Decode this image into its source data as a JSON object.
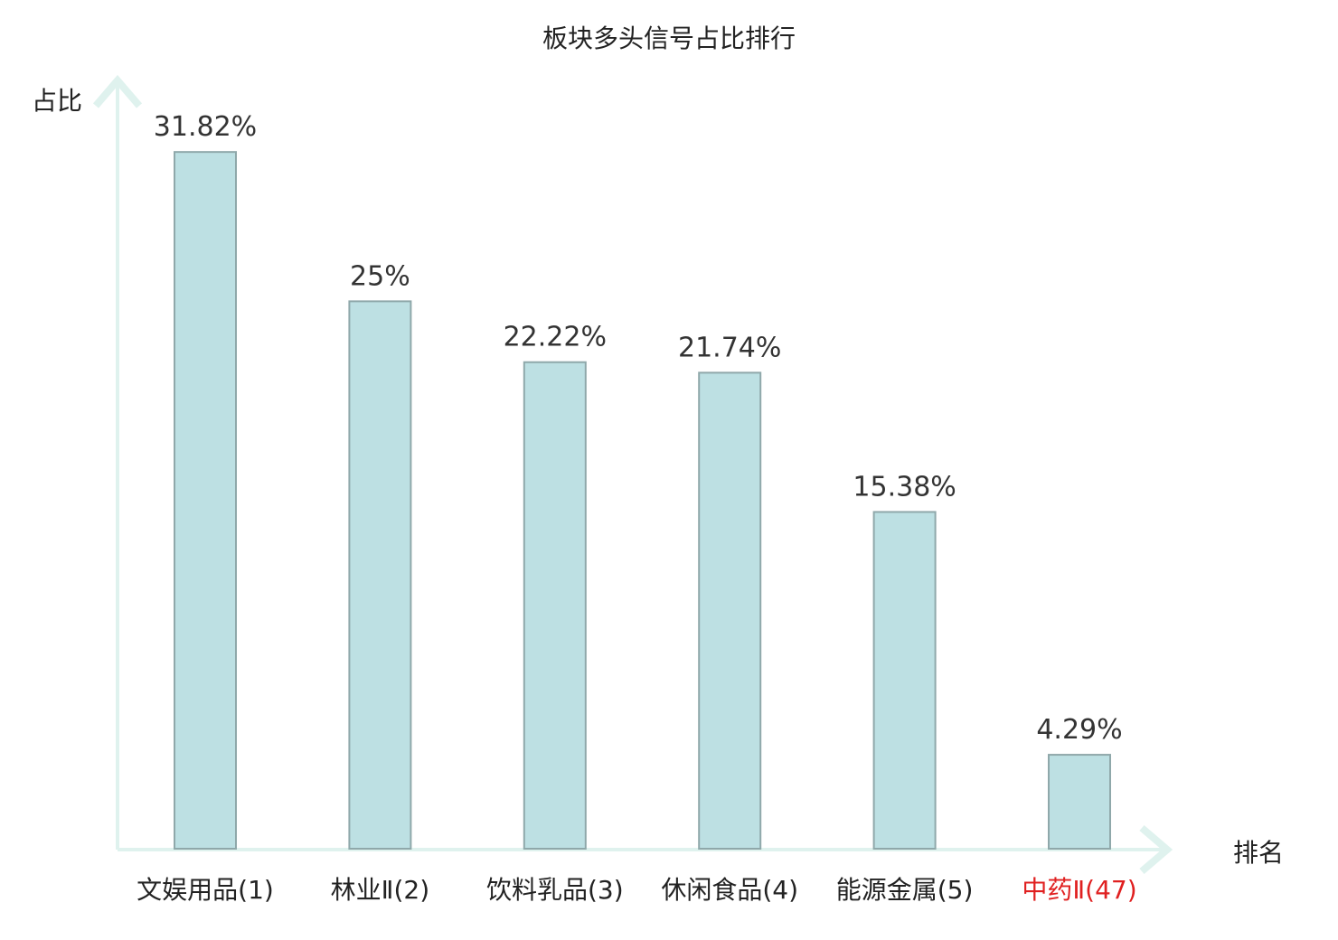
{
  "chart_data": {
    "type": "bar",
    "title": "板块多头信号占比排行",
    "ylabel": "占比",
    "xlabel": "排名",
    "categories": [
      "文娱用品(1)",
      "林业Ⅱ(2)",
      "饮料乳品(3)",
      "休闲食品(4)",
      "能源金属(5)",
      "中药Ⅱ(47)"
    ],
    "values": [
      31.82,
      25,
      22.22,
      21.74,
      15.38,
      4.29
    ],
    "value_labels": [
      "31.82%",
      "25%",
      "22.22%",
      "21.74%",
      "15.38%",
      "4.29%"
    ],
    "highlight_index": 5,
    "ylim": [
      0,
      35
    ],
    "grid": false,
    "colors": {
      "bar_fill": "#bde0e3",
      "bar_stroke": "#8fa8aa",
      "axis": "#dff2ee",
      "text": "#222222",
      "value_text": "#333333",
      "highlight": "#e02020"
    }
  }
}
